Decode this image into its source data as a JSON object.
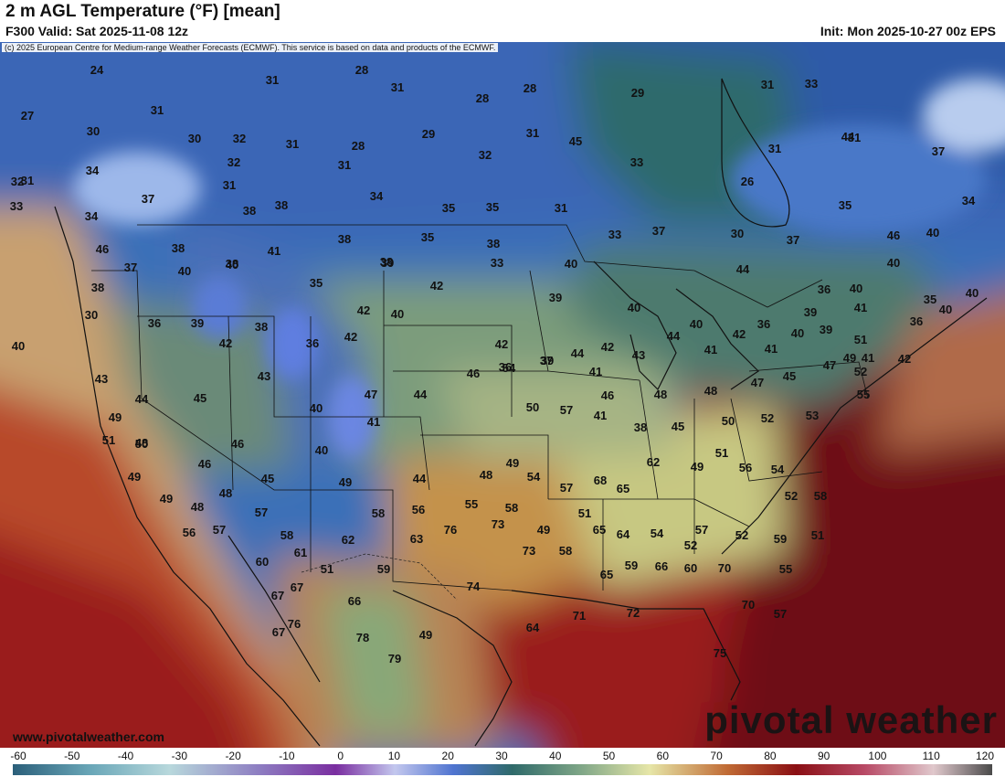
{
  "header": {
    "title": "2 m AGL Temperature (°F) [mean]",
    "valid": "F300 Valid: Sat 2025-11-08 12z",
    "init": "Init: Mon 2025-10-27 00z EPS"
  },
  "map": {
    "credit": "(c) 2025 European Centre for Medium-range Weather Forecasts (ECMWF). This service is based on data and products of the ECMWF.",
    "website": "www.pivotalweather.com",
    "brand": "pivotal weather",
    "temperature_labels": [
      "24",
      "28",
      "31",
      "31",
      "28",
      "29",
      "31",
      "33",
      "31",
      "28",
      "27",
      "30",
      "29",
      "32",
      "31",
      "28",
      "31",
      "45",
      "31",
      "30",
      "33",
      "31",
      "31",
      "34",
      "31",
      "32",
      "32",
      "31",
      "26",
      "44",
      "37",
      "32",
      "33",
      "37",
      "34",
      "35",
      "35",
      "34",
      "31",
      "30",
      "35",
      "38",
      "38",
      "34",
      "46",
      "38",
      "41",
      "38",
      "35",
      "33",
      "40",
      "37",
      "37",
      "38",
      "38",
      "40",
      "37",
      "46",
      "40",
      "40",
      "33",
      "40",
      "39",
      "38",
      "35",
      "40",
      "38",
      "42",
      "42",
      "40",
      "44",
      "36",
      "40",
      "35",
      "30",
      "36",
      "39",
      "38",
      "36",
      "42",
      "42",
      "39",
      "40",
      "40",
      "36",
      "39",
      "41",
      "40",
      "42",
      "36",
      "37",
      "44",
      "42",
      "43",
      "44",
      "41",
      "42",
      "41",
      "40",
      "39",
      "51",
      "36",
      "40",
      "41",
      "42",
      "43",
      "44",
      "45",
      "43",
      "40",
      "47",
      "44",
      "46",
      "54",
      "39",
      "41",
      "46",
      "48",
      "48",
      "47",
      "45",
      "47",
      "49",
      "52",
      "55",
      "50",
      "57",
      "41",
      "38",
      "45",
      "50",
      "52",
      "53",
      "49",
      "50",
      "51",
      "48",
      "46",
      "46",
      "45",
      "40",
      "49",
      "41",
      "44",
      "48",
      "49",
      "54",
      "57",
      "68",
      "65",
      "62",
      "49",
      "51",
      "56",
      "54",
      "52",
      "58",
      "49",
      "49",
      "48",
      "48",
      "57",
      "58",
      "58",
      "56",
      "55",
      "58",
      "49",
      "51",
      "65",
      "64",
      "54",
      "52",
      "57",
      "52",
      "59",
      "55",
      "51",
      "56",
      "57",
      "60",
      "61",
      "62",
      "63",
      "76",
      "73",
      "73",
      "58",
      "65",
      "59",
      "66",
      "60",
      "70",
      "70",
      "57",
      "67",
      "51",
      "66",
      "59",
      "74",
      "64",
      "71",
      "72",
      "75",
      "76",
      "67",
      "67",
      "78",
      "79",
      "49"
    ],
    "icons": [
      "state-border-lines",
      "country-border-lines",
      "coastline"
    ]
  },
  "colorbar": {
    "ticks": [
      "-60",
      "-50",
      "-40",
      "-30",
      "-20",
      "-10",
      "0",
      "10",
      "20",
      "30",
      "40",
      "50",
      "60",
      "70",
      "80",
      "90",
      "100",
      "110",
      "120"
    ]
  }
}
